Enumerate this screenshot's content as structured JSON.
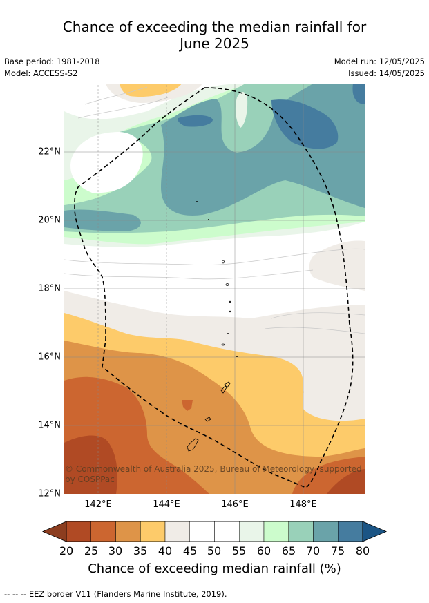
{
  "title_line1": "Chance of exceeding the median rainfall for",
  "title_line2": "June 2025",
  "base_period": "Base period: 1981-2018",
  "model": "Model: ACCESS-S2",
  "model_run": "Model run: 12/05/2025",
  "issued": "Issued: 14/05/2025",
  "copyright": "© Commonwealth of Australia 2025, Bureau of Meteorology, supported by COSPPac",
  "lat_labels": [
    "22°N",
    "20°N",
    "18°N",
    "16°N",
    "14°N",
    "12°N"
  ],
  "lon_labels": [
    "142°E",
    "144°E",
    "146°E",
    "148°E"
  ],
  "legend": {
    "title": "Chance of exceeding median rainfall (%)",
    "ticks": [
      "20",
      "25",
      "30",
      "35",
      "40",
      "45",
      "50",
      "55",
      "60",
      "65",
      "70",
      "75",
      "80"
    ],
    "colors": [
      "#8c3d1f",
      "#b04a24",
      "#cc6630",
      "#de9448",
      "#fdcb6a",
      "#f0ece7",
      "#ffffff",
      "#ffffff",
      "#e9f5e9",
      "#ccfccc",
      "#99d1b9",
      "#6aa3a9",
      "#457c9f",
      "#1b5585"
    ]
  },
  "footer": "--  --  -- EEZ border V11 (Flanders Marine Institute, 2019)."
}
